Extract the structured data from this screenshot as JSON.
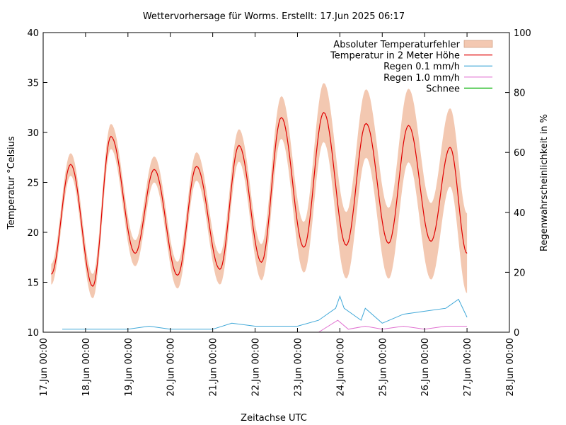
{
  "chart_data": {
    "type": "line",
    "title": "Wettervorhersage für Worms. Erstellt: 17.Jun 2025 06:17",
    "xlabel": "Zeitachse UTC",
    "ylabel": "Temperatur °Celsius",
    "y2label": "Regenwahrscheinlichkeit in %",
    "xlim": [
      0,
      11
    ],
    "ylim": [
      10,
      40
    ],
    "y2lim": [
      0,
      100
    ],
    "x_unit": "days since 17.Jun 00:00",
    "x_ticks": [
      "17.Jun 00:00",
      "18.Jun 00:00",
      "19.Jun 00:00",
      "20.Jun 00:00",
      "21.Jun 00:00",
      "22.Jun 00:00",
      "23.Jun 00:00",
      "24.Jun 00:00",
      "25.Jun 00:00",
      "26.Jun 00:00",
      "27.Jun 00:00",
      "28.Jun 00:00"
    ],
    "y_ticks": [
      10,
      15,
      20,
      25,
      30,
      35,
      40
    ],
    "y2_ticks": [
      0,
      20,
      40,
      60,
      80,
      100
    ],
    "grid": false,
    "legend_position": "top-right",
    "legend": [
      {
        "label": "Absoluter Temperaturfehler",
        "color": "#f3c8b1",
        "kind": "box"
      },
      {
        "label": "Temperatur in 2 Meter Höhe",
        "color": "#e00000",
        "kind": "line"
      },
      {
        "label": "Regen 0.1 mm/h",
        "color": "#40a8d8",
        "kind": "line"
      },
      {
        "label": "Regen 1.0 mm/h",
        "color": "#e070d0",
        "kind": "line"
      },
      {
        "label": "Schnee",
        "color": "#00b000",
        "kind": "line"
      }
    ],
    "temp_min": [
      {
        "x": 0.19,
        "y": 15.8
      },
      {
        "x": 1.17,
        "y": 14.6
      },
      {
        "x": 2.17,
        "y": 17.9
      },
      {
        "x": 3.17,
        "y": 15.7
      },
      {
        "x": 4.17,
        "y": 16.3
      },
      {
        "x": 5.15,
        "y": 17.0
      },
      {
        "x": 6.15,
        "y": 18.5
      },
      {
        "x": 7.15,
        "y": 18.7
      },
      {
        "x": 8.15,
        "y": 18.9
      },
      {
        "x": 9.15,
        "y": 19.1
      },
      {
        "x": 10.0,
        "y": 17.9
      }
    ],
    "temp_max": [
      {
        "x": 0.65,
        "y": 26.8
      },
      {
        "x": 1.6,
        "y": 29.6
      },
      {
        "x": 2.62,
        "y": 26.3
      },
      {
        "x": 3.62,
        "y": 26.6
      },
      {
        "x": 4.62,
        "y": 28.7
      },
      {
        "x": 5.62,
        "y": 31.5
      },
      {
        "x": 6.62,
        "y": 32.0
      },
      {
        "x": 7.62,
        "y": 30.9
      },
      {
        "x": 8.62,
        "y": 30.7
      },
      {
        "x": 9.6,
        "y": 28.5
      }
    ],
    "error_band_width": [
      1.0,
      1.2,
      1.3,
      1.3,
      1.5,
      1.7,
      2.4,
      3.3,
      3.5,
      3.8,
      4.0,
      4.2
    ],
    "rain_01_pct": [
      {
        "x": 0.45,
        "y": 1
      },
      {
        "x": 1.0,
        "y": 1
      },
      {
        "x": 1.5,
        "y": 1
      },
      {
        "x": 2.0,
        "y": 1
      },
      {
        "x": 2.5,
        "y": 2
      },
      {
        "x": 3.0,
        "y": 1
      },
      {
        "x": 3.5,
        "y": 1
      },
      {
        "x": 4.0,
        "y": 1
      },
      {
        "x": 4.45,
        "y": 3
      },
      {
        "x": 5.0,
        "y": 2
      },
      {
        "x": 5.5,
        "y": 2
      },
      {
        "x": 6.0,
        "y": 2
      },
      {
        "x": 6.5,
        "y": 4
      },
      {
        "x": 6.9,
        "y": 8
      },
      {
        "x": 7.0,
        "y": 12
      },
      {
        "x": 7.1,
        "y": 8
      },
      {
        "x": 7.5,
        "y": 4
      },
      {
        "x": 7.6,
        "y": 8
      },
      {
        "x": 8.0,
        "y": 3
      },
      {
        "x": 8.5,
        "y": 6
      },
      {
        "x": 9.0,
        "y": 7
      },
      {
        "x": 9.5,
        "y": 8
      },
      {
        "x": 9.8,
        "y": 11
      },
      {
        "x": 10.0,
        "y": 5
      }
    ],
    "rain_10_pct": [
      {
        "x": 6.5,
        "y": 0
      },
      {
        "x": 6.95,
        "y": 4
      },
      {
        "x": 7.2,
        "y": 1
      },
      {
        "x": 7.6,
        "y": 2
      },
      {
        "x": 8.0,
        "y": 1
      },
      {
        "x": 8.5,
        "y": 2
      },
      {
        "x": 9.0,
        "y": 1
      },
      {
        "x": 9.5,
        "y": 2
      },
      {
        "x": 10.0,
        "y": 2
      }
    ],
    "snow_pct": []
  }
}
